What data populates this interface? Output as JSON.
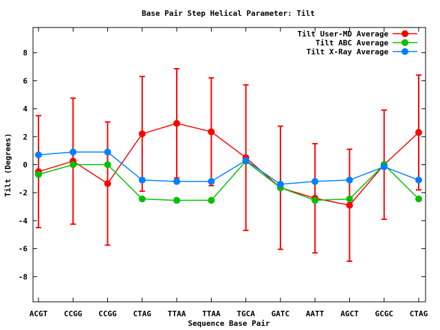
{
  "chart_data": {
    "type": "line",
    "title": "Base Pair Step Helical Parameter: Tilt",
    "xlabel": "Sequence Base Pair",
    "ylabel": "Tilt (Degrees)",
    "categories": [
      "ACGT",
      "CCGG",
      "CCGG",
      "CTAG",
      "TTAA",
      "TTAA",
      "TGCA",
      "GATC",
      "AATT",
      "AGCT",
      "GCGC",
      "CTAG"
    ],
    "ylim": [
      -9.8,
      9.8
    ],
    "yticks": [
      -8,
      -6,
      -4,
      -2,
      0,
      2,
      4,
      6,
      8
    ],
    "ytick_labels": [
      "-8",
      "-6",
      "-4",
      "-2",
      "0",
      "2",
      "4",
      "6",
      "8"
    ],
    "grid": false,
    "legend_position": "top-right",
    "series": [
      {
        "name": "Tilt User-MD Average",
        "color": "#ff0000",
        "values": [
          -0.5,
          0.25,
          -1.35,
          2.2,
          2.95,
          2.35,
          0.5,
          -1.65,
          -2.4,
          -2.9,
          0.0,
          2.3
        ],
        "error": [
          4.0,
          4.5,
          4.4,
          4.1,
          3.9,
          3.85,
          5.2,
          4.4,
          3.9,
          4.0,
          3.9,
          4.1
        ]
      },
      {
        "name": "Tilt ABC Average",
        "color": "#00c000",
        "values": [
          -0.7,
          0.0,
          0.0,
          -2.45,
          -2.55,
          -2.55,
          0.25,
          -1.65,
          -2.55,
          -2.45,
          0.0,
          -2.45
        ]
      },
      {
        "name": "Tilt X-Ray Average",
        "color": "#0080ff",
        "values": [
          0.7,
          0.9,
          0.9,
          -1.1,
          -1.2,
          -1.2,
          0.3,
          -1.4,
          -1.2,
          -1.1,
          -0.15,
          -1.1
        ]
      }
    ]
  }
}
